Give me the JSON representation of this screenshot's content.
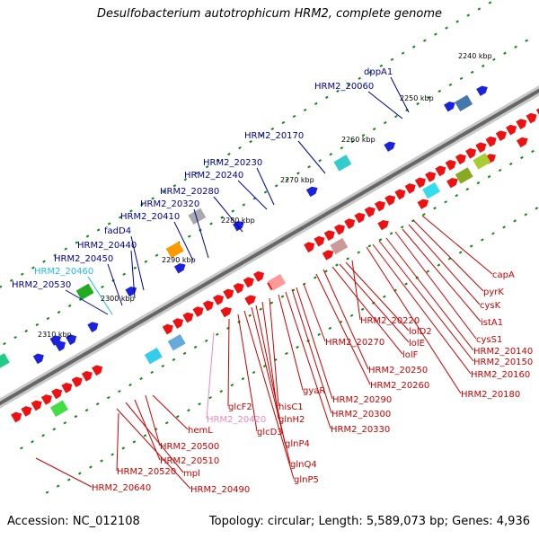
{
  "title": "Desulfobacterium autotrophicum HRM2, complete genome",
  "footer": {
    "accession": "Accession: NC_012108",
    "stats": "Topology: circular; Length: 5,589,073 bp; Genes: 4,936"
  },
  "colors": {
    "gene_red": "#ee1111",
    "gene_blue": "#1a22dd",
    "label_red": "#cc0000",
    "label_blue": "#000099",
    "label_cyan": "#22bbdd",
    "label_pink": "#ee88bb",
    "tick_green": "#118811",
    "backbone": "#777777"
  },
  "scale_ticks": [
    "2240 kbp",
    "2250 kbp",
    "2260 kbp",
    "2270 kbp",
    "2280 kbp",
    "2290 kbp",
    "2300 kbp",
    "2310 kbp"
  ],
  "labels_top": [
    "dppA1",
    "HRM2_20060",
    "HRM2_20170",
    "HRM2_20230",
    "HRM2_20240",
    "HRM2_20280",
    "HRM2_20320",
    "HRM2_20410",
    "fadD4",
    "HRM2_20440",
    "HRM2_20450",
    "HRM2_20460",
    "HRM2_20530"
  ],
  "labels_right": [
    "capA",
    "pyrK",
    "cysK",
    "istA1",
    "cysS1",
    "HRM2_20140",
    "HRM2_20150",
    "HRM2_20160",
    "HRM2_20180",
    "HRM2_20220",
    "lolD2",
    "lolE",
    "lolF",
    "HRM2_20270",
    "HRM2_20250",
    "HRM2_20260",
    "HRM2_20290",
    "HRM2_20300",
    "HRM2_20330",
    "gyaR",
    "hisC1",
    "glnH2",
    "glnP4",
    "glnQ4",
    "glnP5",
    "glcD3",
    "glcF2",
    "HRM2_20420",
    "hemL",
    "HRM2_20500",
    "HRM2_20510",
    "mpl",
    "HRM2_20520",
    "HRM2_20490",
    "HRM2_20640"
  ]
}
